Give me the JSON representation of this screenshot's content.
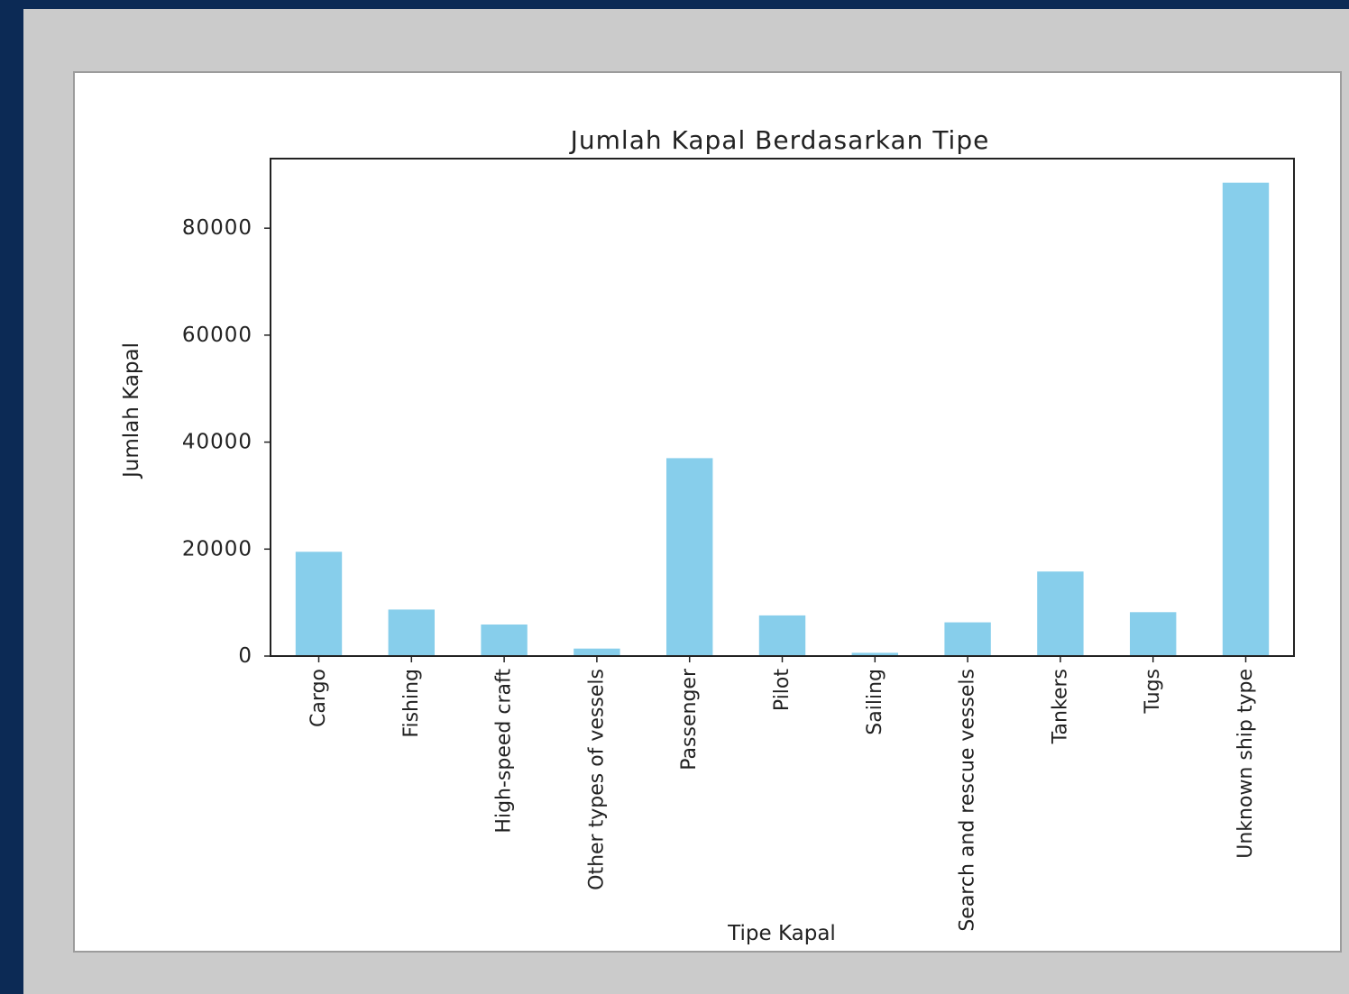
{
  "colors": {
    "background": "#0c2a55",
    "frame": "#cbcbcb",
    "card": "#ffffff",
    "bar": "#87ceeb",
    "axis": "#222222"
  },
  "chart_data": {
    "type": "bar",
    "title": "Jumlah Kapal Berdasarkan Tipe",
    "xlabel": "Tipe Kapal",
    "ylabel": "Jumlah Kapal",
    "categories": [
      "Cargo",
      "Fishing",
      "High-speed craft",
      "Other types of vessels",
      "Passenger",
      "Pilot",
      "Sailing",
      "Search and rescue vessels",
      "Tankers",
      "Tugs",
      "Unknown ship type"
    ],
    "values": [
      19500,
      8700,
      5900,
      1400,
      37000,
      7600,
      600,
      6300,
      15800,
      8200,
      88500
    ],
    "ylim": [
      0,
      93000
    ],
    "yticks": [
      0,
      20000,
      40000,
      60000,
      80000
    ],
    "ytick_labels": [
      "0",
      "20000",
      "40000",
      "60000",
      "80000"
    ],
    "grid": false,
    "legend": "none"
  }
}
